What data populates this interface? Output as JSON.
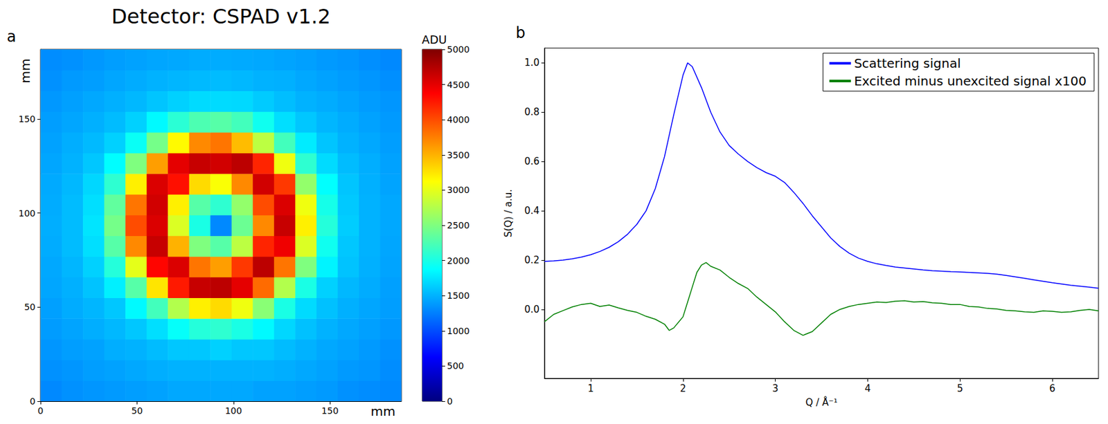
{
  "chart_data": [
    {
      "type": "heatmap",
      "panel_label": "a",
      "title": "Detector: CSPAD v1.2",
      "xlabel": "mm",
      "ylabel": "mm",
      "xlim": [
        0,
        187
      ],
      "ylim": [
        0,
        187
      ],
      "xticks": [
        0,
        50,
        100,
        150
      ],
      "yticks": [
        0,
        50,
        100,
        150
      ],
      "x_edges": [
        0,
        11,
        22,
        33,
        44,
        55,
        66,
        77,
        88,
        99,
        110,
        121,
        132,
        143,
        154,
        165,
        176,
        187
      ],
      "y_edges": [
        0,
        11,
        22,
        33,
        44,
        55,
        66,
        77,
        88,
        99,
        110,
        121,
        132,
        143,
        154,
        165,
        176,
        187
      ],
      "cells": [
        [
          1300,
          1340,
          1360,
          1380,
          1400,
          1420,
          1450,
          1450,
          1450,
          1450,
          1420,
          1420,
          1400,
          1380,
          1340,
          1320,
          1300
        ],
        [
          1340,
          1360,
          1400,
          1420,
          1450,
          1480,
          1500,
          1500,
          1500,
          1500,
          1500,
          1480,
          1450,
          1420,
          1380,
          1360,
          1320
        ],
        [
          1360,
          1400,
          1420,
          1480,
          1500,
          1550,
          1600,
          1600,
          1650,
          1600,
          1600,
          1550,
          1500,
          1450,
          1420,
          1380,
          1340
        ],
        [
          1390,
          1430,
          1480,
          1530,
          1600,
          1720,
          1900,
          2050,
          2100,
          2000,
          1850,
          1680,
          1570,
          1500,
          1450,
          1410,
          1370
        ],
        [
          1410,
          1470,
          1520,
          1600,
          1850,
          2200,
          2750,
          3200,
          3300,
          3050,
          2550,
          2000,
          1700,
          1570,
          1490,
          1440,
          1400
        ],
        [
          1440,
          1490,
          1580,
          1800,
          2300,
          3250,
          4250,
          4650,
          4700,
          4500,
          3850,
          2750,
          2000,
          1650,
          1530,
          1470,
          1410
        ],
        [
          1450,
          1520,
          1650,
          2050,
          3000,
          4350,
          4550,
          3800,
          3600,
          4100,
          4700,
          3800,
          2500,
          1820,
          1580,
          1490,
          1430
        ],
        [
          1470,
          1550,
          1720,
          2300,
          3700,
          4650,
          3500,
          2500,
          2300,
          2800,
          4200,
          4450,
          2950,
          1950,
          1600,
          1500,
          1440
        ],
        [
          1480,
          1550,
          1750,
          2450,
          4000,
          4550,
          2950,
          2000,
          1300,
          2400,
          3700,
          4650,
          3200,
          2050,
          1630,
          1500,
          1450
        ],
        [
          1470,
          1550,
          1720,
          2350,
          3800,
          4600,
          3200,
          2300,
          2100,
          2600,
          4000,
          4550,
          3050,
          1980,
          1610,
          1500,
          1450
        ],
        [
          1460,
          1530,
          1680,
          2100,
          3200,
          4550,
          4300,
          3300,
          3100,
          3700,
          4600,
          4100,
          2600,
          1880,
          1590,
          1490,
          1430
        ],
        [
          1440,
          1500,
          1600,
          1870,
          2500,
          3600,
          4500,
          4650,
          4600,
          4700,
          4200,
          3050,
          2100,
          1700,
          1550,
          1480,
          1420
        ],
        [
          1420,
          1480,
          1540,
          1650,
          1920,
          2450,
          3150,
          3700,
          3800,
          3450,
          2800,
          2200,
          1780,
          1590,
          1500,
          1450,
          1400
        ],
        [
          1400,
          1440,
          1490,
          1550,
          1650,
          1850,
          2080,
          2250,
          2300,
          2200,
          1950,
          1720,
          1600,
          1520,
          1470,
          1420,
          1380
        ],
        [
          1370,
          1410,
          1450,
          1490,
          1530,
          1590,
          1650,
          1700,
          1700,
          1690,
          1620,
          1560,
          1500,
          1470,
          1430,
          1390,
          1360
        ],
        [
          1340,
          1380,
          1400,
          1440,
          1470,
          1500,
          1520,
          1540,
          1550,
          1530,
          1500,
          1490,
          1450,
          1420,
          1390,
          1360,
          1330
        ],
        [
          1320,
          1340,
          1370,
          1400,
          1420,
          1440,
          1450,
          1470,
          1470,
          1460,
          1450,
          1430,
          1410,
          1380,
          1360,
          1330,
          1300
        ]
      ],
      "colorbar": {
        "label": "ADU",
        "range": [
          0,
          5000
        ],
        "ticks": [
          0,
          500,
          1000,
          1500,
          2000,
          2500,
          3000,
          3500,
          4000,
          4500,
          5000
        ]
      }
    },
    {
      "type": "line",
      "panel_label": "b",
      "xlabel": "Q / Å⁻¹",
      "ylabel": "S(Q) / a.u.",
      "xlim": [
        0.5,
        6.5
      ],
      "ylim": [
        -0.28,
        1.06
      ],
      "xticks": [
        1,
        2,
        3,
        4,
        5,
        6
      ],
      "yticks": [
        {
          "value": 0,
          "label": "0.0"
        },
        0.2,
        0.4,
        0.6,
        0.8,
        {
          "value": 1,
          "label": "1.0"
        }
      ],
      "legend": "upper right",
      "series": [
        {
          "name": "Scattering signal",
          "color": "#0000ff",
          "x": [
            0.5,
            0.6,
            0.7,
            0.8,
            0.9,
            1.0,
            1.1,
            1.2,
            1.3,
            1.4,
            1.5,
            1.6,
            1.7,
            1.8,
            1.9,
            2.0,
            2.05,
            2.1,
            2.2,
            2.3,
            2.4,
            2.5,
            2.6,
            2.7,
            2.8,
            2.9,
            3.0,
            3.1,
            3.2,
            3.3,
            3.4,
            3.5,
            3.6,
            3.7,
            3.8,
            3.9,
            4.0,
            4.1,
            4.2,
            4.3,
            4.4,
            4.5,
            4.6,
            4.7,
            4.8,
            4.9,
            5.0,
            5.1,
            5.2,
            5.3,
            5.4,
            5.5,
            5.6,
            5.7,
            5.8,
            5.9,
            6.0,
            6.1,
            6.2,
            6.3,
            6.4,
            6.5
          ],
          "values": [
            0.195,
            0.197,
            0.2,
            0.205,
            0.212,
            0.222,
            0.235,
            0.252,
            0.275,
            0.305,
            0.345,
            0.4,
            0.49,
            0.62,
            0.79,
            0.95,
            1.0,
            0.985,
            0.9,
            0.8,
            0.72,
            0.665,
            0.63,
            0.6,
            0.575,
            0.555,
            0.54,
            0.515,
            0.475,
            0.43,
            0.38,
            0.335,
            0.29,
            0.255,
            0.228,
            0.208,
            0.195,
            0.185,
            0.178,
            0.172,
            0.168,
            0.164,
            0.16,
            0.157,
            0.155,
            0.153,
            0.152,
            0.15,
            0.148,
            0.146,
            0.143,
            0.138,
            0.132,
            0.126,
            0.12,
            0.114,
            0.108,
            0.103,
            0.098,
            0.094,
            0.09,
            0.086
          ]
        },
        {
          "name": "Excited minus unexcited signal x100",
          "color": "#008000",
          "x": [
            0.5,
            0.6,
            0.7,
            0.8,
            0.9,
            1.0,
            1.1,
            1.2,
            1.3,
            1.4,
            1.5,
            1.6,
            1.7,
            1.8,
            1.85,
            1.9,
            2.0,
            2.05,
            2.1,
            2.15,
            2.2,
            2.25,
            2.3,
            2.4,
            2.5,
            2.6,
            2.7,
            2.8,
            2.9,
            3.0,
            3.1,
            3.2,
            3.3,
            3.4,
            3.5,
            3.6,
            3.7,
            3.8,
            3.9,
            4.0,
            4.1,
            4.2,
            4.3,
            4.4,
            4.5,
            4.6,
            4.7,
            4.8,
            4.9,
            5.0,
            5.1,
            5.2,
            5.3,
            5.4,
            5.5,
            5.6,
            5.7,
            5.8,
            5.9,
            6.0,
            6.1,
            6.2,
            6.3,
            6.4,
            6.5
          ],
          "values": [
            -0.05,
            -0.02,
            -0.005,
            0.01,
            0.02,
            0.025,
            0.012,
            0.018,
            0.006,
            -0.004,
            -0.012,
            -0.028,
            -0.04,
            -0.06,
            -0.085,
            -0.075,
            -0.03,
            0.03,
            0.09,
            0.15,
            0.18,
            0.19,
            0.175,
            0.16,
            0.13,
            0.105,
            0.085,
            0.05,
            0.02,
            -0.01,
            -0.05,
            -0.085,
            -0.105,
            -0.09,
            -0.055,
            -0.02,
            0.0,
            0.012,
            0.02,
            0.025,
            0.03,
            0.028,
            0.033,
            0.035,
            0.03,
            0.032,
            0.027,
            0.025,
            0.02,
            0.02,
            0.012,
            0.01,
            0.004,
            0.002,
            -0.004,
            -0.006,
            -0.01,
            -0.012,
            -0.006,
            -0.008,
            -0.012,
            -0.01,
            -0.004,
            0.0,
            -0.006
          ]
        }
      ]
    }
  ]
}
